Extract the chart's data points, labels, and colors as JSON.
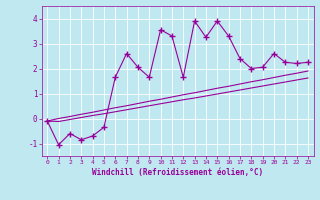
{
  "xlabel": "Windchill (Refroidissement éolien,°C)",
  "x_data": [
    0,
    1,
    2,
    3,
    4,
    5,
    6,
    7,
    8,
    9,
    10,
    11,
    12,
    13,
    14,
    15,
    16,
    17,
    18,
    19,
    20,
    21,
    22,
    23
  ],
  "y_main": [
    -0.1,
    -1.05,
    -0.6,
    -0.85,
    -0.7,
    -0.35,
    1.65,
    2.6,
    2.05,
    1.65,
    3.55,
    3.3,
    1.65,
    3.9,
    3.25,
    3.9,
    3.3,
    2.4,
    2.0,
    2.05,
    2.6,
    2.25,
    2.2,
    2.25
  ],
  "y_line1": [
    -0.1,
    0.0,
    0.08,
    0.17,
    0.25,
    0.34,
    0.43,
    0.51,
    0.6,
    0.69,
    0.77,
    0.86,
    0.95,
    1.03,
    1.12,
    1.21,
    1.29,
    1.38,
    1.47,
    1.55,
    1.64,
    1.73,
    1.81,
    1.9
  ],
  "y_line2": [
    -0.1,
    -0.12,
    -0.04,
    0.04,
    0.12,
    0.19,
    0.27,
    0.35,
    0.43,
    0.51,
    0.59,
    0.67,
    0.75,
    0.82,
    0.9,
    0.98,
    1.06,
    1.14,
    1.22,
    1.3,
    1.38,
    1.46,
    1.54,
    1.62
  ],
  "line_color": "#990099",
  "bg_color": "#c0e8f0",
  "grid_color": "#ffffff",
  "ylim": [
    -1.5,
    4.5
  ],
  "xlim": [
    -0.5,
    23.5
  ],
  "yticks": [
    -1,
    0,
    1,
    2,
    3,
    4
  ],
  "xticks": [
    0,
    1,
    2,
    3,
    4,
    5,
    6,
    7,
    8,
    9,
    10,
    11,
    12,
    13,
    14,
    15,
    16,
    17,
    18,
    19,
    20,
    21,
    22,
    23
  ]
}
